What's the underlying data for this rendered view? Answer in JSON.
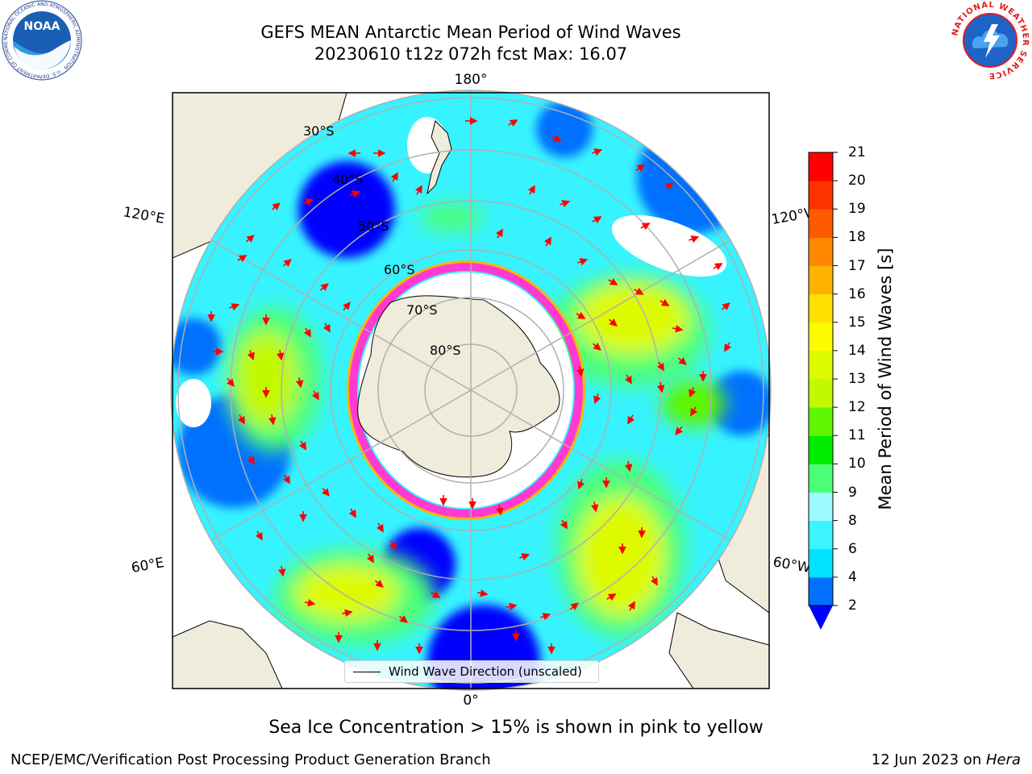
{
  "header": {
    "title_line1": "GEFS MEAN Antarctic Mean Period of Wind Waves",
    "title_line2": "20230610 t12z 072h fcst   Max: 16.07"
  },
  "map": {
    "projection": "south-polar-stereographic",
    "longitude_labels": {
      "top": "180°",
      "upper_left": "120°E",
      "upper_right": "120°W",
      "lower_left": "60°E",
      "lower_right": "60°W",
      "bottom": "0°"
    },
    "latitude_labels": [
      "30°S",
      "40°S",
      "50°S",
      "60°S",
      "70°S",
      "80°S"
    ],
    "colors": {
      "land": "#efecdc",
      "ocean_base": "#37f3ff",
      "ice_edge": "#ff3ad2",
      "ice_interior": "#ffffff",
      "arrows": "#ff0000",
      "gridlines": "#b0b0b0"
    }
  },
  "legend": {
    "label": "Wind Wave Direction (unscaled)"
  },
  "colorbar": {
    "label": "Mean Period of Wind Waves [s]",
    "ticks": [
      "2",
      "4",
      "6",
      "8",
      "9",
      "10",
      "11",
      "12",
      "13",
      "14",
      "15",
      "16",
      "17",
      "18",
      "19",
      "20",
      "21"
    ],
    "colors": [
      "#0070ff",
      "#00e4ff",
      "#3cf3ff",
      "#9dfcff",
      "#4cff78",
      "#00ed00",
      "#5ff500",
      "#c2f800",
      "#ddfa00",
      "#fcfc00",
      "#ffe000",
      "#ffb300",
      "#ff8800",
      "#ff5a00",
      "#ff3300",
      "#ff0000"
    ],
    "extend_color": "#0000ff"
  },
  "footer": {
    "subtitle": "Sea Ice Concentration > 15% is shown in pink to yellow",
    "left": "NCEP/EMC/Verification Post Processing Product Generation Branch",
    "right_date": "12 Jun 2023 on ",
    "right_system": "Hera"
  },
  "logos": {
    "noaa_text": "NOAA",
    "noaa_ring_text": "NATIONAL OCEANIC AND ATMOSPHERIC ADMINISTRATION · U.S. DEPARTMENT OF COMMERCE",
    "nws_ring_text": "NATIONAL WEATHER SERVICE"
  }
}
